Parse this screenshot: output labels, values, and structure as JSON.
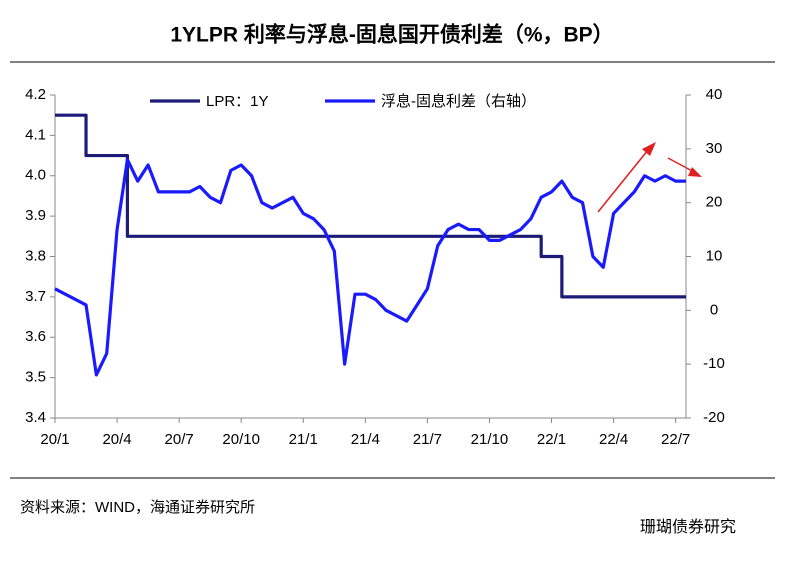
{
  "chart_data": {
    "type": "line",
    "title": "1YLPR 利率与浮息-固息国开债利差（%，BP）",
    "source": "资料来源：WIND，海通证券研究所",
    "watermark": "珊瑚债券研究",
    "categories": [
      "20/1",
      null,
      null,
      null,
      null,
      null,
      "20/4",
      null,
      null,
      null,
      null,
      null,
      "20/7",
      null,
      null,
      null,
      null,
      null,
      "20/10",
      null,
      null,
      null,
      null,
      null,
      "21/1",
      null,
      null,
      null,
      null,
      null,
      "21/4",
      null,
      null,
      null,
      null,
      null,
      "21/7",
      null,
      null,
      null,
      null,
      null,
      "21/10",
      null,
      null,
      null,
      null,
      null,
      "22/1",
      null,
      null,
      null,
      null,
      null,
      "22/4",
      null,
      null,
      null,
      null,
      null,
      "22/7",
      null
    ],
    "series": [
      {
        "name": "LPR：1Y",
        "color": "#1c1c78",
        "axis": "y",
        "drawstyle": "steps-post",
        "values": [
          4.15,
          4.15,
          4.15,
          4.05,
          4.05,
          4.05,
          4.05,
          3.85,
          3.85,
          3.85,
          3.85,
          3.85,
          3.85,
          3.85,
          3.85,
          3.85,
          3.85,
          3.85,
          3.85,
          3.85,
          3.85,
          3.85,
          3.85,
          3.85,
          3.85,
          3.85,
          3.85,
          3.85,
          3.85,
          3.85,
          3.85,
          3.85,
          3.85,
          3.85,
          3.85,
          3.85,
          3.85,
          3.85,
          3.85,
          3.85,
          3.85,
          3.85,
          3.85,
          3.85,
          3.85,
          3.85,
          3.85,
          3.8,
          3.8,
          3.7,
          3.7,
          3.7,
          3.7,
          3.7,
          3.7,
          3.7,
          3.7,
          3.7,
          3.7,
          3.7,
          3.7,
          3.7
        ]
      },
      {
        "name": "浮息-固息利差（右轴）",
        "color": "#1a1aff",
        "axis": "y2",
        "values": [
          4,
          3,
          2,
          1,
          -12,
          -8,
          15,
          28,
          24,
          27,
          22,
          22,
          22,
          22,
          23,
          21,
          20,
          26,
          27,
          25,
          20,
          19,
          20,
          21,
          18,
          17,
          15,
          11,
          -10,
          3,
          3,
          2,
          0,
          -1,
          -2,
          1,
          4,
          12,
          15,
          16,
          15,
          15,
          13,
          13,
          14,
          15,
          17,
          21,
          22,
          24,
          21,
          20,
          10,
          8,
          18,
          20,
          22,
          25,
          24,
          25,
          24,
          24
        ]
      }
    ],
    "ylim": [
      3.4,
      4.2
    ],
    "yticks": [
      3.4,
      3.5,
      3.6,
      3.7,
      3.8,
      3.9,
      {
        "value": 4,
        "label": "4.0"
      },
      4.1,
      4.2
    ],
    "y2lim": [
      -20,
      40
    ],
    "y2ticks": [
      -20,
      -10,
      0,
      10,
      20,
      30,
      40
    ],
    "legend": "top"
  }
}
